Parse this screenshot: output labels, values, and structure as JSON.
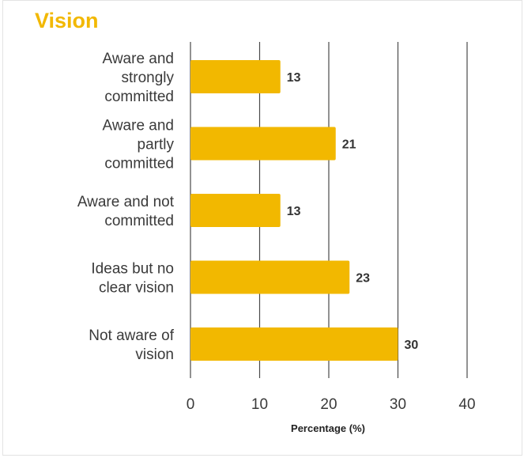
{
  "chart_data": {
    "type": "bar",
    "orientation": "horizontal",
    "title": "Vision",
    "categories": [
      [
        "Aware and",
        "strongly",
        "committed"
      ],
      [
        "Aware and",
        "partly",
        "committed"
      ],
      [
        "Aware and not",
        "committed"
      ],
      [
        "Ideas but no",
        "clear vision"
      ],
      [
        "Not aware of",
        "vision"
      ]
    ],
    "values": [
      13,
      21,
      13,
      23,
      30
    ],
    "value_labels": [
      "13",
      "21",
      "13",
      "23",
      "30"
    ],
    "xlabel": "Percentage (%)",
    "ylabel": "",
    "xlim": [
      0,
      40
    ],
    "xticks": [
      0,
      10,
      20,
      30,
      40
    ],
    "xtick_labels": [
      "0",
      "10",
      "20",
      "30",
      "40"
    ],
    "grid": "vertical",
    "bar_color": "#f2b800",
    "title_color": "#f2b800",
    "grid_color": "#4a4a4a"
  }
}
